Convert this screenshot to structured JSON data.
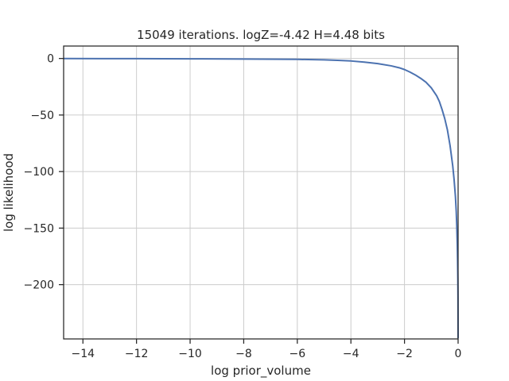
{
  "chart_data": {
    "type": "line",
    "title": "15049 iterations. logZ=-4.42 H=4.48 bits",
    "xlabel": "log prior_volume",
    "ylabel": "log likelihood",
    "xlim": [
      -14.72,
      0
    ],
    "ylim": [
      -248,
      11
    ],
    "xticks": [
      -14,
      -12,
      -10,
      -8,
      -6,
      -4,
      -2,
      0
    ],
    "xtick_labels": [
      "−14",
      "−12",
      "−10",
      "−8",
      "−6",
      "−4",
      "−2",
      "0"
    ],
    "yticks": [
      0,
      -50,
      -100,
      -150,
      -200
    ],
    "ytick_labels": [
      "0",
      "−50",
      "−100",
      "−150",
      "−200"
    ],
    "grid": true,
    "legend": "none",
    "series": [
      {
        "color": "#4c72b0",
        "x": [
          -14.72,
          -12,
          -10,
          -8,
          -6,
          -5,
          -4.5,
          -4,
          -3.5,
          -3,
          -2.5,
          -2.2,
          -2,
          -1.8,
          -1.6,
          -1.4,
          -1.2,
          -1,
          -0.8,
          -0.7,
          -0.6,
          -0.5,
          -0.4,
          -0.3,
          -0.2,
          -0.15,
          -0.1,
          -0.07,
          -0.05,
          -0.03,
          -0.02,
          -0.01,
          -0.005,
          -0.001
        ],
        "y": [
          -0.1,
          -0.15,
          -0.3,
          -0.5,
          -0.8,
          -1.2,
          -1.6,
          -2.2,
          -3.2,
          -4.5,
          -6.5,
          -8.2,
          -9.8,
          -12.0,
          -14.5,
          -17.5,
          -21,
          -26,
          -33,
          -38,
          -45,
          -53,
          -63,
          -77,
          -95,
          -107,
          -122,
          -135,
          -148,
          -165,
          -178,
          -195,
          -210,
          -247
        ]
      }
    ]
  }
}
